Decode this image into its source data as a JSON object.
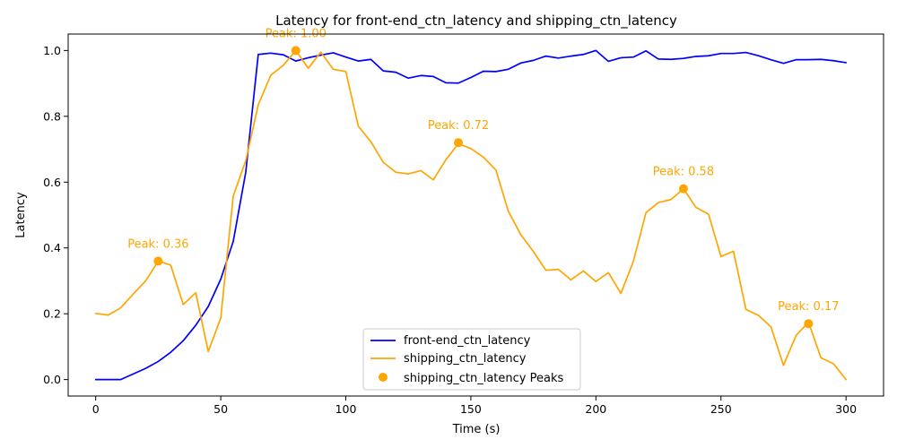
{
  "chart_data": {
    "type": "line",
    "title": "Latency for front-end_ctn_latency and shipping_ctn_latency",
    "xlabel": "Time (s)",
    "ylabel": "Latency",
    "xlim": [
      -11,
      315
    ],
    "ylim": [
      -0.05,
      1.05
    ],
    "xticks": [
      0,
      50,
      100,
      150,
      200,
      250,
      300
    ],
    "yticks": [
      0.0,
      0.2,
      0.4,
      0.6,
      0.8,
      1.0
    ],
    "grid": false,
    "legend_position": "lower-center",
    "x": [
      0,
      5,
      10,
      15,
      20,
      25,
      30,
      35,
      40,
      45,
      50,
      55,
      60,
      65,
      70,
      75,
      80,
      85,
      90,
      95,
      100,
      105,
      110,
      115,
      120,
      125,
      130,
      135,
      140,
      145,
      150,
      155,
      160,
      165,
      170,
      175,
      180,
      185,
      190,
      195,
      200,
      205,
      210,
      215,
      220,
      225,
      230,
      235,
      240,
      245,
      250,
      255,
      260,
      265,
      270,
      275,
      280,
      285,
      290,
      295,
      300
    ],
    "series": [
      {
        "name": "front-end_ctn_latency",
        "color": "#0000ff",
        "values": [
          0.0,
          0.0,
          0.0,
          0.017,
          0.034,
          0.055,
          0.083,
          0.118,
          0.165,
          0.222,
          0.305,
          0.42,
          0.63,
          0.988,
          0.992,
          0.987,
          0.968,
          0.978,
          0.986,
          0.993,
          0.98,
          0.968,
          0.973,
          0.938,
          0.934,
          0.916,
          0.924,
          0.921,
          0.902,
          0.901,
          0.918,
          0.937,
          0.936,
          0.943,
          0.962,
          0.97,
          0.983,
          0.977,
          0.983,
          0.988,
          1.0,
          0.967,
          0.978,
          0.98,
          0.999,
          0.974,
          0.973,
          0.976,
          0.982,
          0.984,
          0.991,
          0.991,
          0.994,
          0.984,
          0.972,
          0.961,
          0.972,
          0.972,
          0.973,
          0.969,
          0.963
        ]
      },
      {
        "name": "shipping_ctn_latency",
        "color": "#ffa500",
        "values": [
          0.201,
          0.196,
          0.218,
          0.26,
          0.3,
          0.36,
          0.348,
          0.228,
          0.264,
          0.085,
          0.187,
          0.558,
          0.665,
          0.835,
          0.925,
          0.955,
          1.0,
          0.946,
          0.995,
          0.943,
          0.936,
          0.77,
          0.723,
          0.66,
          0.63,
          0.625,
          0.635,
          0.607,
          0.668,
          0.717,
          0.702,
          0.676,
          0.637,
          0.511,
          0.44,
          0.389,
          0.332,
          0.335,
          0.303,
          0.33,
          0.298,
          0.325,
          0.262,
          0.36,
          0.507,
          0.538,
          0.547,
          0.58,
          0.523,
          0.503,
          0.374,
          0.39,
          0.213,
          0.195,
          0.16,
          0.043,
          0.134,
          0.174,
          0.066,
          0.048,
          0.0
        ]
      }
    ],
    "peaks": {
      "name": "shipping_ctn_latency Peaks",
      "color": "#ffa500",
      "points": [
        {
          "x": 25,
          "y": 0.36,
          "label": "Peak: 0.36"
        },
        {
          "x": 80,
          "y": 1.0,
          "label": "Peak: 1.00"
        },
        {
          "x": 145,
          "y": 0.72,
          "label": "Peak: 0.72"
        },
        {
          "x": 235,
          "y": 0.58,
          "label": "Peak: 0.58"
        },
        {
          "x": 285,
          "y": 0.17,
          "label": "Peak: 0.17"
        }
      ]
    }
  }
}
